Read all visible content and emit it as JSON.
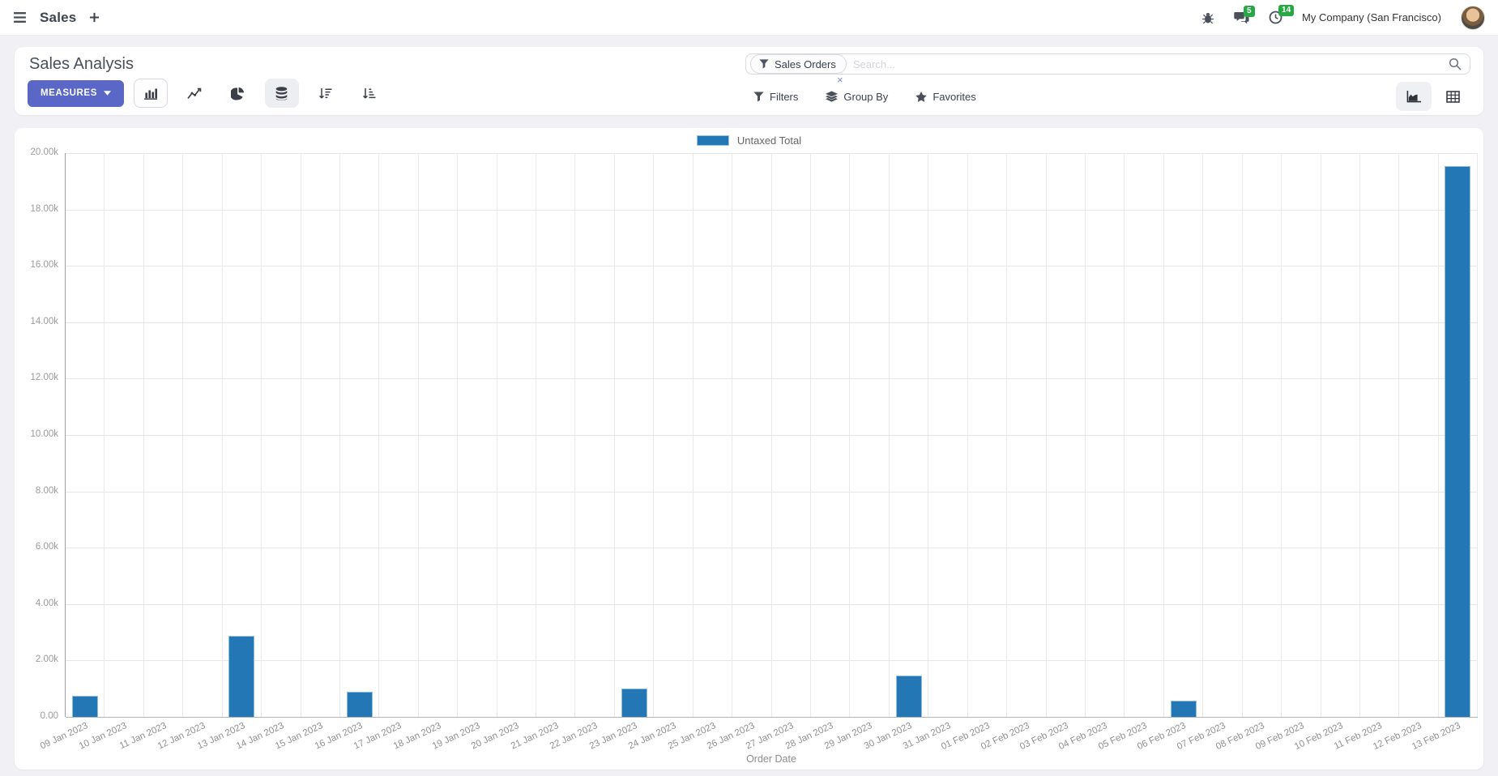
{
  "navbar": {
    "app_name": "Sales",
    "messages_badge": "5",
    "activities_badge": "14",
    "company": "My Company (San Francisco)"
  },
  "control_panel": {
    "title": "Sales Analysis",
    "measures_label": "MEASURES",
    "search": {
      "facet_label": "Sales Orders",
      "facet_remove": "×",
      "placeholder": "Search..."
    },
    "filters_label": "Filters",
    "group_by_label": "Group By",
    "favorites_label": "Favorites"
  },
  "legend": {
    "label": "Untaxed Total",
    "color": "#2377b4",
    "border": "#9cc6e2"
  },
  "chart_data": {
    "type": "bar",
    "title": "",
    "xlabel": "Order Date",
    "ylabel": "",
    "ylim": [
      0,
      20000
    ],
    "grid": true,
    "legend_position": "top",
    "bar_color": "#2377b4",
    "y_ticks": [
      "20.00k",
      "18.00k",
      "16.00k",
      "14.00k",
      "12.00k",
      "10.00k",
      "8.00k",
      "6.00k",
      "4.00k",
      "2.00k",
      "0.00"
    ],
    "categories": [
      "09 Jan 2023",
      "10 Jan 2023",
      "11 Jan 2023",
      "12 Jan 2023",
      "13 Jan 2023",
      "14 Jan 2023",
      "15 Jan 2023",
      "16 Jan 2023",
      "17 Jan 2023",
      "18 Jan 2023",
      "19 Jan 2023",
      "20 Jan 2023",
      "21 Jan 2023",
      "22 Jan 2023",
      "23 Jan 2023",
      "24 Jan 2023",
      "25 Jan 2023",
      "26 Jan 2023",
      "27 Jan 2023",
      "28 Jan 2023",
      "29 Jan 2023",
      "30 Jan 2023",
      "31 Jan 2023",
      "01 Feb 2023",
      "02 Feb 2023",
      "03 Feb 2023",
      "04 Feb 2023",
      "05 Feb 2023",
      "06 Feb 2023",
      "07 Feb 2023",
      "08 Feb 2023",
      "09 Feb 2023",
      "10 Feb 2023",
      "11 Feb 2023",
      "12 Feb 2023",
      "13 Feb 2023"
    ],
    "series": [
      {
        "name": "Untaxed Total",
        "values": [
          750,
          0,
          0,
          0,
          2870,
          0,
          0,
          890,
          0,
          0,
          0,
          0,
          0,
          0,
          1000,
          0,
          0,
          0,
          0,
          0,
          0,
          1470,
          0,
          0,
          0,
          0,
          0,
          0,
          580,
          0,
          0,
          0,
          0,
          0,
          0,
          19540
        ]
      }
    ]
  },
  "icons": {
    "menu-icon": "hamburger",
    "plus-icon": "+",
    "bug-icon": "debug bug",
    "messages-icon": "chat bubbles",
    "activities-icon": "clock",
    "filter-facet-icon": "funnel",
    "search-icon": "magnifier",
    "bar-chart-icon": "bar chart",
    "line-chart-icon": "line chart",
    "pie-chart-icon": "pie chart",
    "stacked-icon": "database stack",
    "sort-desc-icon": "arrow down + descending bars",
    "sort-asc-icon": "arrow down + ascending bars",
    "filters-icon": "funnel",
    "group-by-icon": "layers",
    "favorites-icon": "star",
    "graph-view-icon": "area chart",
    "pivot-view-icon": "table grid"
  }
}
